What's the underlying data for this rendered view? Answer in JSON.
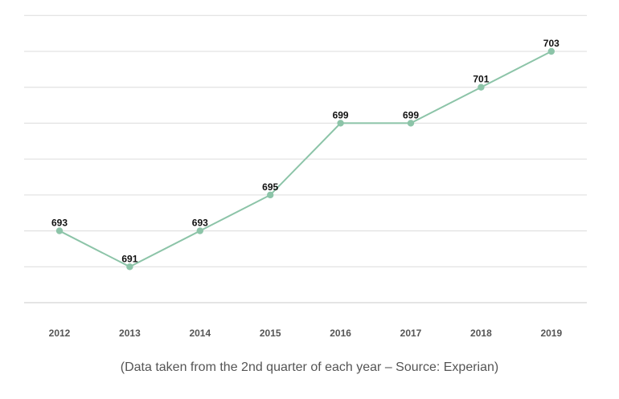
{
  "chart_data": {
    "type": "line",
    "categories": [
      "2012",
      "2013",
      "2014",
      "2015",
      "2016",
      "2017",
      "2018",
      "2019"
    ],
    "series": [
      {
        "values": [
          693,
          691,
          693,
          695,
          699,
          699,
          701,
          703
        ]
      }
    ],
    "ylim": [
      689,
      703
    ],
    "grid": true,
    "legend": "none",
    "data_labels": true,
    "line_color": "#8cc4a8",
    "marker_color": "#8cc4a8"
  },
  "caption": "(Data taken from the 2nd quarter of each year – Source: Experian)"
}
